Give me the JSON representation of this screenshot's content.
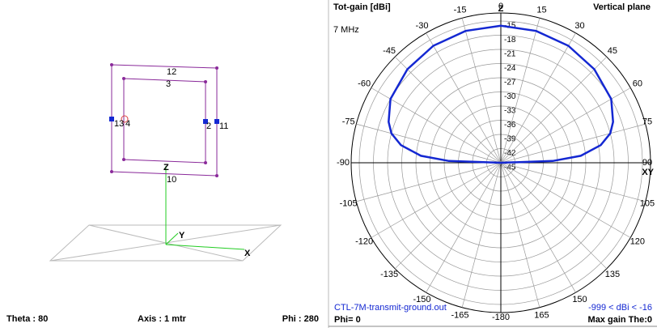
{
  "geometry_view": {
    "labels": [
      "12",
      "3",
      "13",
      "4",
      "2",
      "11",
      "Z",
      "10",
      "Y",
      "X"
    ],
    "status": {
      "theta": "Theta : 80",
      "axis": "Axis : 1 mtr",
      "phi": "Phi : 280"
    }
  },
  "chart_data": {
    "type": "polar",
    "title": "Tot-gain [dBi]",
    "subtitle": "Vertical plane",
    "frequency": "7 MHz",
    "file": "CTL-7M-transmit-ground.out",
    "phi": "Phi= 0",
    "range_note": "-999 < dBi < -16",
    "max_gain": "Max gain The:0",
    "axis_labels": {
      "top": "Z",
      "right": "XY"
    },
    "x": [
      -90,
      -88,
      -85,
      -80,
      -75,
      -70,
      -60,
      -45,
      -30,
      -15,
      0,
      15,
      30,
      45,
      60,
      70,
      75,
      80,
      85,
      88,
      90
    ],
    "series": [
      {
        "color": "#1428d2",
        "values": [
          -45,
          -34,
          -28,
          -23.5,
          -21,
          -19.7,
          -18,
          -17,
          -16.4,
          -16.1,
          -16,
          -16.1,
          -16.4,
          -17,
          -18,
          -19.7,
          -21,
          -23.5,
          -28,
          -34,
          -45
        ]
      }
    ],
    "ylim": [
      -45,
      -15
    ],
    "yticks": [
      -15,
      -18,
      -21,
      -24,
      -27,
      -30,
      -33,
      -36,
      -39,
      -42,
      -45
    ],
    "xticks": [
      0,
      15,
      30,
      45,
      60,
      75,
      90,
      105,
      120,
      135,
      150,
      165,
      -180,
      -165,
      -150,
      -135,
      -120,
      -105,
      -90,
      -75,
      -60,
      -45,
      -30,
      -15
    ]
  }
}
